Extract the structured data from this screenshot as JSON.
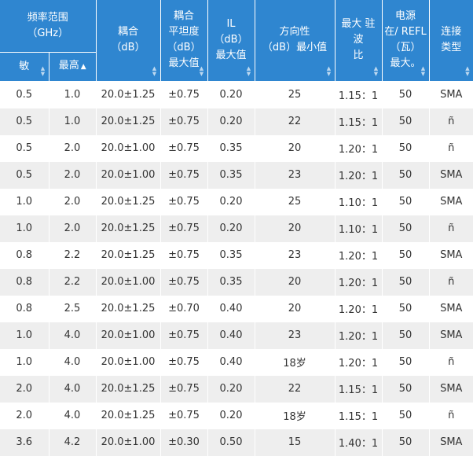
{
  "header": {
    "freq_group": "频率范围\n（GHz）",
    "min_label": "敏",
    "max_label": "最高",
    "max_sort": "▲",
    "coupling": "耦合\n（dB）",
    "flatness": "耦合\n平坦度\n（dB）\n最大值",
    "il": "IL\n（dB）\n最大值",
    "directivity": "方向性\n（dB）最小值",
    "vswr": "最大 驻波\n比",
    "power": "电源\n在/ REFL\n（瓦）\n最大。",
    "connector": "连接\n类型"
  },
  "rows": [
    {
      "min": "0.5",
      "max": "1.0",
      "coupling": "20.0±1.25",
      "flatness": "±0.75",
      "il": "0.20",
      "dir": "25",
      "vswr": "1.15：1",
      "power": "50",
      "conn": "SMA"
    },
    {
      "min": "0.5",
      "max": "1.0",
      "coupling": "20.0±1.25",
      "flatness": "±0.75",
      "il": "0.20",
      "dir": "22",
      "vswr": "1.15：1",
      "power": "50",
      "conn": "ñ"
    },
    {
      "min": "0.5",
      "max": "2.0",
      "coupling": "20.0±1.00",
      "flatness": "±0.75",
      "il": "0.35",
      "dir": "20",
      "vswr": "1.20：1",
      "power": "50",
      "conn": "ñ"
    },
    {
      "min": "0.5",
      "max": "2.0",
      "coupling": "20.0±1.00",
      "flatness": "±0.75",
      "il": "0.35",
      "dir": "23",
      "vswr": "1.20：1",
      "power": "50",
      "conn": "SMA"
    },
    {
      "min": "1.0",
      "max": "2.0",
      "coupling": "20.0±1.25",
      "flatness": "±0.75",
      "il": "0.20",
      "dir": "25",
      "vswr": "1.10：1",
      "power": "50",
      "conn": "SMA"
    },
    {
      "min": "1.0",
      "max": "2.0",
      "coupling": "20.0±1.25",
      "flatness": "±0.75",
      "il": "0.20",
      "dir": "20",
      "vswr": "1.10：1",
      "power": "50",
      "conn": "ñ"
    },
    {
      "min": "0.8",
      "max": "2.2",
      "coupling": "20.0±1.25",
      "flatness": "±0.75",
      "il": "0.35",
      "dir": "23",
      "vswr": "1.20：1",
      "power": "50",
      "conn": "SMA"
    },
    {
      "min": "0.8",
      "max": "2.2",
      "coupling": "20.0±1.00",
      "flatness": "±0.75",
      "il": "0.35",
      "dir": "20",
      "vswr": "1.20：1",
      "power": "50",
      "conn": "ñ"
    },
    {
      "min": "0.8",
      "max": "2.5",
      "coupling": "20.0±1.25",
      "flatness": "±0.70",
      "il": "0.40",
      "dir": "20",
      "vswr": "1.20：1",
      "power": "50",
      "conn": "SMA"
    },
    {
      "min": "1.0",
      "max": "4.0",
      "coupling": "20.0±1.00",
      "flatness": "±0.75",
      "il": "0.40",
      "dir": "23",
      "vswr": "1.20：1",
      "power": "50",
      "conn": "SMA"
    },
    {
      "min": "1.0",
      "max": "4.0",
      "coupling": "20.0±1.00",
      "flatness": "±0.75",
      "il": "0.40",
      "dir": "18岁",
      "vswr": "1.20：1",
      "power": "50",
      "conn": "ñ"
    },
    {
      "min": "2.0",
      "max": "4.0",
      "coupling": "20.0±1.25",
      "flatness": "±0.75",
      "il": "0.20",
      "dir": "22",
      "vswr": "1.15：1",
      "power": "50",
      "conn": "SMA"
    },
    {
      "min": "2.0",
      "max": "4.0",
      "coupling": "20.0±1.25",
      "flatness": "±0.75",
      "il": "0.20",
      "dir": "18岁",
      "vswr": "1.15：1",
      "power": "50",
      "conn": "ñ"
    },
    {
      "min": "3.6",
      "max": "4.2",
      "coupling": "20.0±1.00",
      "flatness": "±0.30",
      "il": "0.50",
      "dir": "15",
      "vswr": "1.40：1",
      "power": "50",
      "conn": "SMA"
    }
  ]
}
